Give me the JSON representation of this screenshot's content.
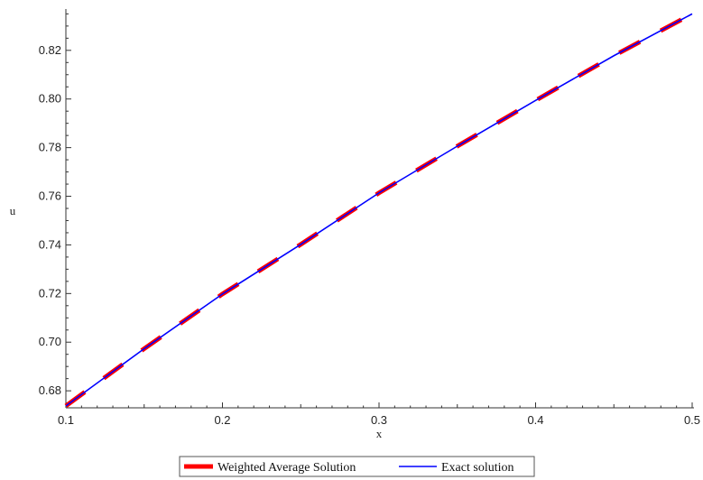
{
  "chart_data": {
    "type": "line",
    "title": "",
    "xlabel": "x",
    "ylabel": "u",
    "xlim": [
      0.1,
      0.5
    ],
    "ylim": [
      0.673,
      0.837
    ],
    "xticks": [
      0.1,
      0.2,
      0.3,
      0.4,
      0.5
    ],
    "xtick_labels": [
      "0.1",
      "0.2",
      "0.3",
      "0.4",
      "0.5"
    ],
    "yticks": [
      0.68,
      0.7,
      0.72,
      0.74,
      0.76,
      0.78,
      0.8,
      0.82
    ],
    "ytick_labels": [
      "0.68",
      "0.70",
      "0.72",
      "0.74",
      "0.76",
      "0.78",
      "0.80",
      "0.82"
    ],
    "grid": false,
    "legend_position": "bottom",
    "series": [
      {
        "name": "Weighted Average Solution",
        "color": "#ff0000",
        "style": "thick dashed",
        "x": [
          0.1,
          0.15,
          0.2,
          0.25,
          0.3,
          0.35,
          0.4,
          0.45,
          0.5
        ],
        "y": [
          0.6738,
          0.6973,
          0.7198,
          0.7402,
          0.7614,
          0.7806,
          0.7994,
          0.8178,
          0.835
        ]
      },
      {
        "name": "Exact solution",
        "color": "#0000ff",
        "style": "solid",
        "x": [
          0.1,
          0.15,
          0.2,
          0.25,
          0.3,
          0.35,
          0.4,
          0.45,
          0.5
        ],
        "y": [
          0.6738,
          0.6973,
          0.7198,
          0.7402,
          0.7614,
          0.7806,
          0.7994,
          0.8178,
          0.835
        ]
      }
    ]
  }
}
